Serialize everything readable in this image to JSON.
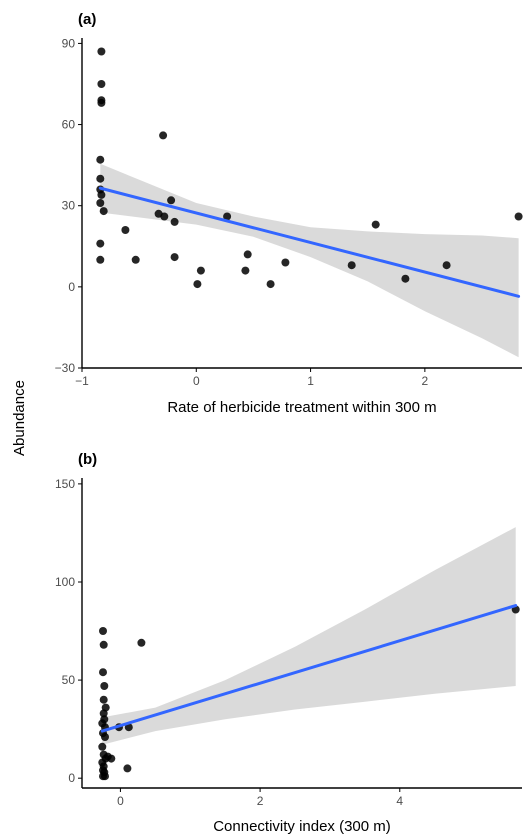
{
  "shared_ylabel": "Abundance",
  "colors": {
    "fit_line": "#3366ff",
    "ci_band": "#d3d3d3",
    "points": "#000000",
    "axis": "#000000",
    "tick_text": "#4d4d4d"
  },
  "chart_data": [
    {
      "type": "scatter",
      "tag": "(a)",
      "xlabel": "Rate of herbicide treatment within 300 m",
      "ylabel": "Abundance",
      "xlim": [
        -1,
        2.85
      ],
      "ylim": [
        -30,
        92
      ],
      "xticks": [
        -1,
        0,
        1,
        2
      ],
      "yticks": [
        -30,
        0,
        30,
        60,
        90
      ],
      "grid": false,
      "points": [
        {
          "x": -0.83,
          "y": 87
        },
        {
          "x": -0.83,
          "y": 75
        },
        {
          "x": -0.83,
          "y": 69
        },
        {
          "x": -0.83,
          "y": 68
        },
        {
          "x": -0.84,
          "y": 47
        },
        {
          "x": -0.84,
          "y": 40
        },
        {
          "x": -0.84,
          "y": 36
        },
        {
          "x": -0.83,
          "y": 34
        },
        {
          "x": -0.84,
          "y": 31
        },
        {
          "x": -0.81,
          "y": 28
        },
        {
          "x": -0.84,
          "y": 16
        },
        {
          "x": -0.84,
          "y": 10
        },
        {
          "x": -0.62,
          "y": 21
        },
        {
          "x": -0.53,
          "y": 10
        },
        {
          "x": -0.29,
          "y": 56
        },
        {
          "x": -0.33,
          "y": 27
        },
        {
          "x": -0.28,
          "y": 26
        },
        {
          "x": -0.22,
          "y": 32
        },
        {
          "x": -0.19,
          "y": 24
        },
        {
          "x": -0.19,
          "y": 11
        },
        {
          "x": 0.01,
          "y": 1
        },
        {
          "x": 0.04,
          "y": 6
        },
        {
          "x": 0.27,
          "y": 26
        },
        {
          "x": 0.43,
          "y": 6
        },
        {
          "x": 0.45,
          "y": 12
        },
        {
          "x": 0.65,
          "y": 1
        },
        {
          "x": 0.78,
          "y": 9
        },
        {
          "x": 1.36,
          "y": 8
        },
        {
          "x": 1.57,
          "y": 23
        },
        {
          "x": 1.83,
          "y": 3
        },
        {
          "x": 2.19,
          "y": 8
        },
        {
          "x": 2.82,
          "y": 26
        }
      ],
      "fit": {
        "x": [
          -0.84,
          2.82
        ],
        "y": [
          36.5,
          -3.5
        ]
      },
      "ci": [
        {
          "x": -0.84,
          "lo": 27.5,
          "hi": 45.5
        },
        {
          "x": 0.0,
          "lo": 23.0,
          "hi": 31.0
        },
        {
          "x": 0.5,
          "lo": 18.5,
          "hi": 26.0
        },
        {
          "x": 1.0,
          "lo": 11.0,
          "hi": 22.0
        },
        {
          "x": 1.5,
          "lo": 2.0,
          "hi": 20.5
        },
        {
          "x": 2.0,
          "lo": -9.0,
          "hi": 19.5
        },
        {
          "x": 2.5,
          "lo": -19.0,
          "hi": 19.0
        },
        {
          "x": 2.82,
          "lo": -26.0,
          "hi": 18.0
        }
      ]
    },
    {
      "type": "scatter",
      "tag": "(b)",
      "xlabel": "Connectivity index (300 m)",
      "ylabel": "Abundance",
      "xlim": [
        -0.55,
        5.75
      ],
      "ylim": [
        -5,
        153
      ],
      "xticks": [
        0,
        2,
        4
      ],
      "yticks": [
        0,
        50,
        100,
        150
      ],
      "grid": false,
      "points": [
        {
          "x": -0.25,
          "y": 75
        },
        {
          "x": -0.24,
          "y": 68
        },
        {
          "x": -0.25,
          "y": 54
        },
        {
          "x": -0.23,
          "y": 47
        },
        {
          "x": -0.24,
          "y": 40
        },
        {
          "x": -0.21,
          "y": 36
        },
        {
          "x": -0.24,
          "y": 33
        },
        {
          "x": -0.23,
          "y": 30
        },
        {
          "x": -0.26,
          "y": 28
        },
        {
          "x": -0.22,
          "y": 26
        },
        {
          "x": -0.25,
          "y": 23
        },
        {
          "x": -0.22,
          "y": 21
        },
        {
          "x": -0.26,
          "y": 16
        },
        {
          "x": -0.24,
          "y": 12
        },
        {
          "x": -0.21,
          "y": 10
        },
        {
          "x": -0.26,
          "y": 8
        },
        {
          "x": -0.24,
          "y": 6
        },
        {
          "x": -0.25,
          "y": 4
        },
        {
          "x": -0.23,
          "y": 3
        },
        {
          "x": -0.25,
          "y": 1
        },
        {
          "x": -0.22,
          "y": 1
        },
        {
          "x": -0.18,
          "y": 11
        },
        {
          "x": -0.13,
          "y": 10
        },
        {
          "x": -0.02,
          "y": 26
        },
        {
          "x": 0.12,
          "y": 26
        },
        {
          "x": 0.1,
          "y": 5
        },
        {
          "x": 0.3,
          "y": 69
        },
        {
          "x": 5.66,
          "y": 86
        }
      ],
      "fit": {
        "x": [
          -0.26,
          5.66
        ],
        "y": [
          24,
          88
        ]
      },
      "ci": [
        {
          "x": -0.26,
          "lo": 17,
          "hi": 31
        },
        {
          "x": 0.5,
          "lo": 24,
          "hi": 36
        },
        {
          "x": 1.5,
          "lo": 30,
          "hi": 50
        },
        {
          "x": 2.5,
          "lo": 35,
          "hi": 67
        },
        {
          "x": 3.5,
          "lo": 39,
          "hi": 86
        },
        {
          "x": 4.5,
          "lo": 43,
          "hi": 106
        },
        {
          "x": 5.66,
          "lo": 47,
          "hi": 128
        }
      ]
    }
  ]
}
